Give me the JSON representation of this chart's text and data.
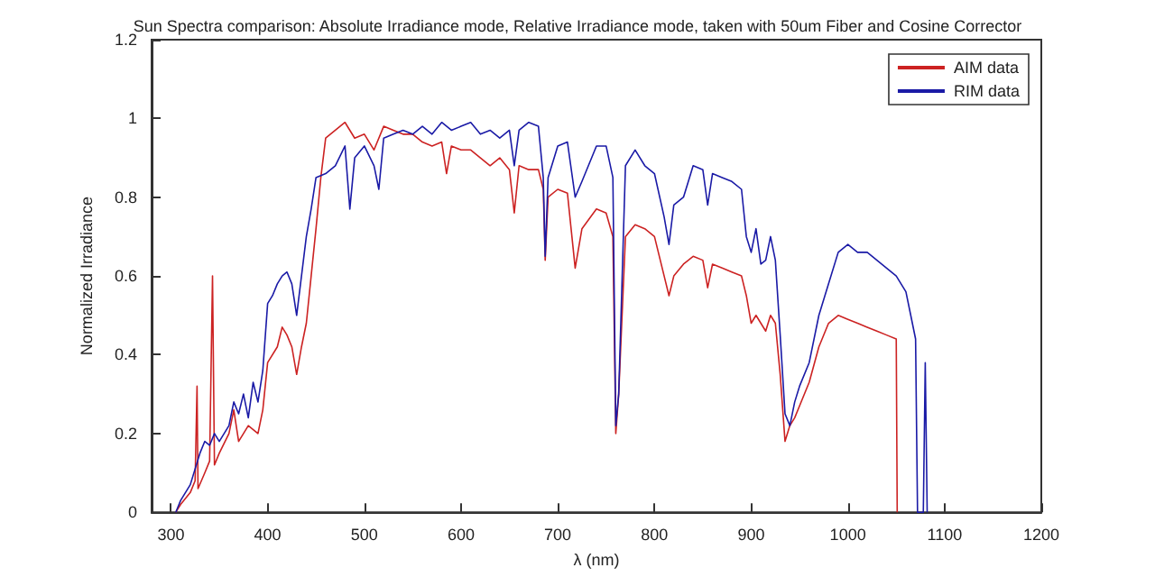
{
  "chart_data": {
    "type": "line",
    "title": "Sun Spectra comparison: Absolute Irradiance mode, Relative Irradiance mode, taken with 50um Fiber and Cosine Corrector",
    "xlabel": "λ (nm)",
    "ylabel": "Normalized Irradiance",
    "xlim": [
      280,
      1200
    ],
    "xticks": [
      300,
      400,
      500,
      600,
      700,
      800,
      900,
      1000,
      1100,
      1200
    ],
    "ylim": [
      0,
      1.2
    ],
    "yticks": [
      0,
      0.2,
      0.4,
      0.6,
      0.8,
      1,
      1.2
    ],
    "grid": false,
    "legend": "top right",
    "marker": "none",
    "line_style": "solid",
    "series": [
      {
        "name": "AIM data",
        "color": "#cc2222",
        "x": [
          305,
          310,
          320,
          325,
          327,
          328,
          335,
          340,
          343,
          345,
          350,
          360,
          365,
          370,
          380,
          390,
          395,
          400,
          410,
          415,
          420,
          425,
          430,
          435,
          440,
          445,
          450,
          455,
          460,
          470,
          480,
          490,
          500,
          510,
          520,
          530,
          540,
          550,
          560,
          570,
          580,
          585,
          590,
          600,
          610,
          620,
          630,
          640,
          650,
          655,
          660,
          670,
          680,
          685,
          687,
          690,
          700,
          710,
          718,
          725,
          740,
          750,
          757,
          760,
          763,
          770,
          780,
          790,
          800,
          810,
          815,
          820,
          830,
          840,
          850,
          855,
          860,
          870,
          880,
          890,
          895,
          900,
          905,
          910,
          915,
          920,
          925,
          930,
          935,
          940,
          945,
          950,
          960,
          970,
          980,
          990,
          1000,
          1010,
          1020,
          1030,
          1040,
          1050,
          1051
        ],
        "values": [
          0,
          0.02,
          0.05,
          0.08,
          0.32,
          0.06,
          0.1,
          0.13,
          0.6,
          0.12,
          0.15,
          0.2,
          0.26,
          0.18,
          0.22,
          0.2,
          0.26,
          0.38,
          0.42,
          0.47,
          0.45,
          0.42,
          0.35,
          0.42,
          0.48,
          0.6,
          0.72,
          0.85,
          0.95,
          0.97,
          0.99,
          0.95,
          0.96,
          0.92,
          0.98,
          0.97,
          0.96,
          0.96,
          0.94,
          0.93,
          0.94,
          0.86,
          0.93,
          0.92,
          0.92,
          0.9,
          0.88,
          0.9,
          0.87,
          0.76,
          0.88,
          0.87,
          0.87,
          0.82,
          0.64,
          0.8,
          0.82,
          0.81,
          0.62,
          0.72,
          0.77,
          0.76,
          0.7,
          0.2,
          0.3,
          0.7,
          0.73,
          0.72,
          0.7,
          0.6,
          0.55,
          0.6,
          0.63,
          0.65,
          0.64,
          0.57,
          0.63,
          0.62,
          0.61,
          0.6,
          0.55,
          0.48,
          0.5,
          0.48,
          0.46,
          0.5,
          0.48,
          0.35,
          0.18,
          0.22,
          0.24,
          0.27,
          0.33,
          0.42,
          0.48,
          0.5,
          0.49,
          0.48,
          0.47,
          0.46,
          0.45,
          0.44,
          0
        ]
      },
      {
        "name": "RIM data",
        "color": "#1a1aa6",
        "x": [
          305,
          310,
          320,
          330,
          335,
          340,
          345,
          350,
          360,
          365,
          370,
          375,
          380,
          385,
          390,
          395,
          400,
          405,
          410,
          415,
          420,
          425,
          430,
          435,
          440,
          445,
          450,
          460,
          470,
          480,
          485,
          490,
          500,
          510,
          515,
          520,
          530,
          540,
          550,
          560,
          570,
          580,
          590,
          600,
          610,
          620,
          630,
          640,
          650,
          655,
          660,
          670,
          680,
          685,
          687,
          690,
          700,
          710,
          718,
          725,
          740,
          750,
          757,
          760,
          763,
          770,
          780,
          790,
          800,
          810,
          815,
          820,
          830,
          840,
          850,
          855,
          860,
          870,
          880,
          890,
          895,
          900,
          905,
          910,
          915,
          920,
          925,
          930,
          935,
          940,
          945,
          950,
          960,
          970,
          980,
          990,
          1000,
          1010,
          1020,
          1030,
          1040,
          1050,
          1060,
          1065,
          1070,
          1072,
          1078,
          1080,
          1082
        ],
        "values": [
          0,
          0.03,
          0.07,
          0.15,
          0.18,
          0.17,
          0.2,
          0.18,
          0.22,
          0.28,
          0.25,
          0.3,
          0.24,
          0.33,
          0.28,
          0.36,
          0.53,
          0.55,
          0.58,
          0.6,
          0.61,
          0.58,
          0.5,
          0.6,
          0.7,
          0.77,
          0.85,
          0.86,
          0.88,
          0.93,
          0.77,
          0.9,
          0.93,
          0.88,
          0.82,
          0.95,
          0.96,
          0.97,
          0.96,
          0.98,
          0.96,
          0.99,
          0.97,
          0.98,
          0.99,
          0.96,
          0.97,
          0.95,
          0.97,
          0.88,
          0.97,
          0.99,
          0.98,
          0.85,
          0.65,
          0.85,
          0.93,
          0.94,
          0.8,
          0.84,
          0.93,
          0.93,
          0.85,
          0.22,
          0.3,
          0.88,
          0.92,
          0.88,
          0.86,
          0.75,
          0.68,
          0.78,
          0.8,
          0.88,
          0.87,
          0.78,
          0.86,
          0.85,
          0.84,
          0.82,
          0.7,
          0.66,
          0.72,
          0.63,
          0.64,
          0.7,
          0.64,
          0.45,
          0.25,
          0.22,
          0.28,
          0.32,
          0.38,
          0.5,
          0.58,
          0.66,
          0.68,
          0.66,
          0.66,
          0.64,
          0.62,
          0.6,
          0.56,
          0.5,
          0.44,
          0,
          0,
          0.38,
          0
        ]
      }
    ]
  }
}
